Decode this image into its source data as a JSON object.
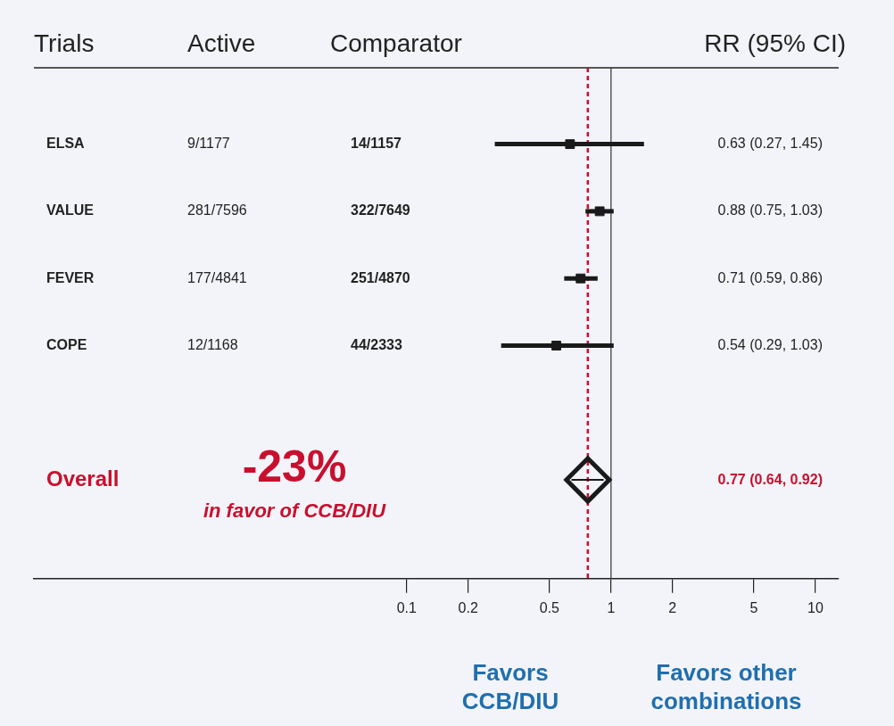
{
  "chart_data": {
    "type": "scatter",
    "orientation": "horizontal",
    "categories": [
      "ELSA",
      "VALUE",
      "FEVER",
      "COPE",
      null,
      "Overall"
    ],
    "series": [
      {
        "color": "#1a1a1a",
        "marker": "square",
        "values": [
          0.63,
          0.88,
          0.71,
          0.54,
          null,
          null
        ],
        "errors": [
          [
            0.27,
            1.45
          ],
          [
            0.75,
            1.03
          ],
          [
            0.59,
            0.86
          ],
          [
            0.29,
            1.03
          ],
          null,
          null
        ]
      },
      {
        "color": "#1a1a1a",
        "marker": "diamond",
        "values": [
          null,
          null,
          null,
          null,
          null,
          0.77
        ],
        "errors": [
          null,
          null,
          null,
          null,
          null,
          [
            0.64,
            0.92
          ]
        ]
      }
    ],
    "log": "x",
    "xlim": [
      0.0015,
      13
    ],
    "xticks": [
      0.1,
      0.2,
      0.5,
      1,
      2,
      5,
      10
    ],
    "ref_lines": [
      {
        "axis": "x",
        "value": 1,
        "color": "#333333",
        "line_style": "solid"
      },
      {
        "axis": "x",
        "value": 0.77,
        "color": "#c8102e",
        "line_style": "dashed"
      }
    ],
    "annotations": [
      "Trials",
      "Active",
      "Comparator",
      "RR (95% CI)",
      "-23%",
      "in favor of CCB/DIU",
      "Favors\nCCB/DIU",
      "Favors other\ncombinations",
      "9/1177",
      "281/7596",
      "177/4841",
      "12/1168",
      "14/1157",
      "322/7649",
      "251/4870",
      "44/2333",
      "0.63 (0.27, 1.45)",
      "0.88 (0.75, 1.03)",
      "0.71 (0.59, 0.86)",
      "0.54 (0.29, 1.03)",
      "0.77 (0.64, 0.92)"
    ],
    "grid": false,
    "legend": false
  }
}
